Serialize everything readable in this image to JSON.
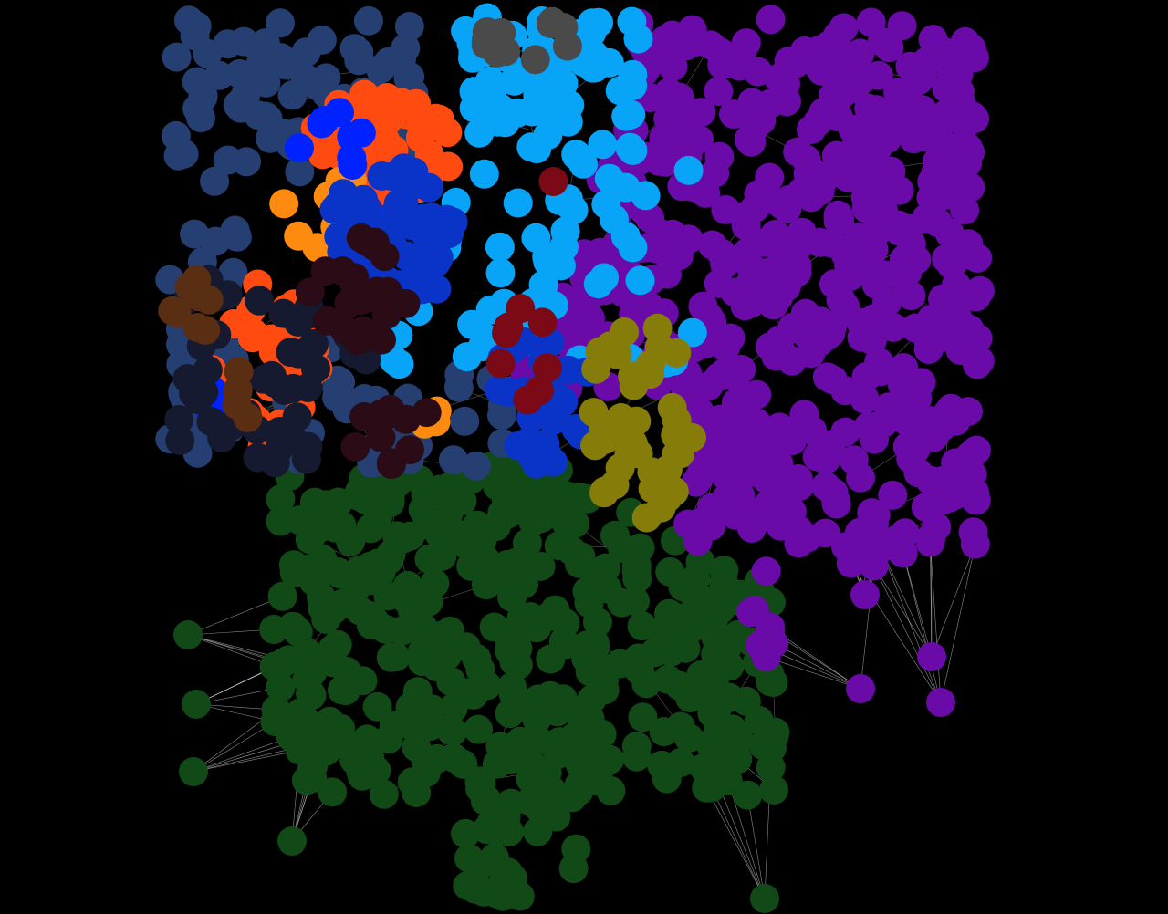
{
  "background_color": "#000000",
  "edge_color": "#ffffff",
  "communities": [
    {
      "name": "green",
      "color": "#114a17"
    },
    {
      "name": "purple",
      "color": "#6a0aa8"
    },
    {
      "name": "navy",
      "color": "#263f72"
    },
    {
      "name": "sky-blue",
      "color": "#08a4f8"
    },
    {
      "name": "orange-red",
      "color": "#ff4a10"
    },
    {
      "name": "royal-blue",
      "color": "#0a34c8"
    },
    {
      "name": "dark-navy",
      "color": "#161a30"
    },
    {
      "name": "olive",
      "color": "#857c0a"
    },
    {
      "name": "dark-maroon",
      "color": "#2a0b16"
    },
    {
      "name": "maroon",
      "color": "#7c0a16"
    },
    {
      "name": "brown",
      "color": "#5a2e12"
    },
    {
      "name": "gray",
      "color": "#4a4a4a"
    },
    {
      "name": "bright-blue",
      "color": "#0022ff"
    },
    {
      "name": "orange",
      "color": "#ff8a10"
    }
  ]
}
